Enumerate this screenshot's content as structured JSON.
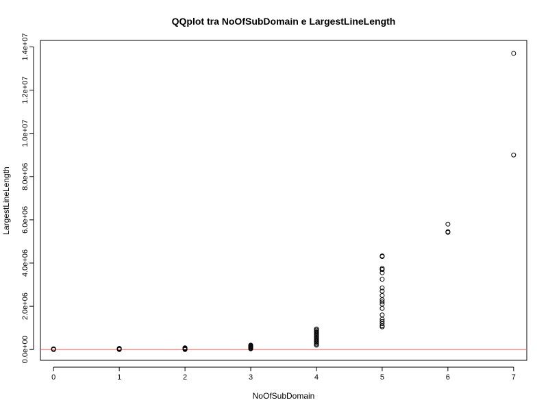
{
  "chart_data": {
    "type": "scatter",
    "title": "QQplot tra NoOfSubDomain e LargestLineLength",
    "xlabel": "NoOfSubDomain",
    "ylabel": "LargestLineLength",
    "xlim": [
      -0.2,
      7.2
    ],
    "ylim": [
      -500000,
      14300000
    ],
    "x_ticks": [
      0,
      1,
      2,
      3,
      4,
      5,
      6,
      7
    ],
    "x_tick_labels": [
      "0",
      "1",
      "2",
      "3",
      "4",
      "5",
      "6",
      "7"
    ],
    "y_ticks": [
      0,
      2000000,
      4000000,
      6000000,
      8000000,
      10000000,
      12000000,
      14000000
    ],
    "y_tick_labels": [
      "0.0e+00",
      "2.0e+06",
      "4.0e+06",
      "6.0e+06",
      "8.0e+06",
      "1.0e+07",
      "1.2e+07",
      "1.4e+07"
    ],
    "reference_line": {
      "y": 0,
      "color": "#ff6666"
    },
    "grid": false,
    "marker": "open-circle",
    "points": [
      {
        "x": 0,
        "y": 0
      },
      {
        "x": 0,
        "y": 10000
      },
      {
        "x": 0,
        "y": 20000
      },
      {
        "x": 0,
        "y": 30000
      },
      {
        "x": 1,
        "y": 0
      },
      {
        "x": 1,
        "y": 15000
      },
      {
        "x": 1,
        "y": 30000
      },
      {
        "x": 1,
        "y": 50000
      },
      {
        "x": 2,
        "y": 0
      },
      {
        "x": 2,
        "y": 20000
      },
      {
        "x": 2,
        "y": 40000
      },
      {
        "x": 2,
        "y": 60000
      },
      {
        "x": 2,
        "y": 80000
      },
      {
        "x": 3,
        "y": 30000
      },
      {
        "x": 3,
        "y": 60000
      },
      {
        "x": 3,
        "y": 90000
      },
      {
        "x": 3,
        "y": 120000
      },
      {
        "x": 3,
        "y": 150000
      },
      {
        "x": 3,
        "y": 180000
      },
      {
        "x": 3,
        "y": 200000
      },
      {
        "x": 4,
        "y": 200000
      },
      {
        "x": 4,
        "y": 250000
      },
      {
        "x": 4,
        "y": 300000
      },
      {
        "x": 4,
        "y": 350000
      },
      {
        "x": 4,
        "y": 400000
      },
      {
        "x": 4,
        "y": 450000
      },
      {
        "x": 4,
        "y": 500000
      },
      {
        "x": 4,
        "y": 550000
      },
      {
        "x": 4,
        "y": 600000
      },
      {
        "x": 4,
        "y": 650000
      },
      {
        "x": 4,
        "y": 700000
      },
      {
        "x": 4,
        "y": 750000
      },
      {
        "x": 4,
        "y": 800000
      },
      {
        "x": 4,
        "y": 850000
      },
      {
        "x": 4,
        "y": 900000
      },
      {
        "x": 4,
        "y": 950000
      },
      {
        "x": 5,
        "y": 1050000
      },
      {
        "x": 5,
        "y": 1100000
      },
      {
        "x": 5,
        "y": 1200000
      },
      {
        "x": 5,
        "y": 1300000
      },
      {
        "x": 5,
        "y": 1400000
      },
      {
        "x": 5,
        "y": 1600000
      },
      {
        "x": 5,
        "y": 1900000
      },
      {
        "x": 5,
        "y": 2100000
      },
      {
        "x": 5,
        "y": 2200000
      },
      {
        "x": 5,
        "y": 2300000
      },
      {
        "x": 5,
        "y": 2500000
      },
      {
        "x": 5,
        "y": 2700000
      },
      {
        "x": 5,
        "y": 2850000
      },
      {
        "x": 5,
        "y": 3250000
      },
      {
        "x": 5,
        "y": 3550000
      },
      {
        "x": 5,
        "y": 3700000
      },
      {
        "x": 5,
        "y": 3750000
      },
      {
        "x": 5,
        "y": 4300000
      },
      {
        "x": 5,
        "y": 4330000
      },
      {
        "x": 6,
        "y": 5420000
      },
      {
        "x": 6,
        "y": 5450000
      },
      {
        "x": 6,
        "y": 5800000
      },
      {
        "x": 7,
        "y": 9000000
      },
      {
        "x": 7,
        "y": 13700000
      }
    ]
  }
}
